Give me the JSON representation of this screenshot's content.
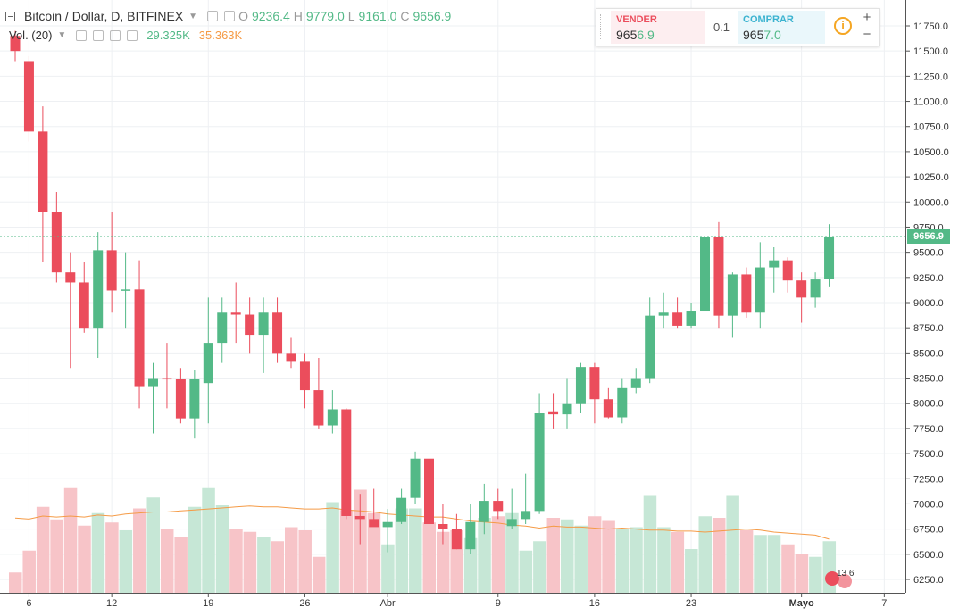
{
  "legend": {
    "symbol": "Bitcoin / Dollar, D, BITFINEX",
    "open_label": "O",
    "open": "9236.4",
    "high_label": "H",
    "high": "9779.0",
    "low_label": "L",
    "low": "9161.0",
    "close_label": "C",
    "close": "9656.9",
    "volume_label": "Vol. (20)",
    "volume_value": "29.325K",
    "volume_ma": "35.363K"
  },
  "trade": {
    "sell_label": "VENDER",
    "sell_price_main": "965",
    "sell_price_frac": "6.9",
    "quantity": "0.1",
    "buy_label": "COMPRAR",
    "buy_price_main": "965",
    "buy_price_frac": "7.0",
    "info_icon": "i",
    "plus": "+",
    "minus": "−"
  },
  "current_price_label": "9656.9",
  "time_badge": "13 6",
  "colors": {
    "up": "#53b987",
    "down": "#eb4d5c",
    "vol_up": "#c6e7d6",
    "vol_down": "#f7c4c8",
    "ma": "#f59b46"
  },
  "chart_data": {
    "type": "candlestick",
    "y_axis_labels": [
      "11750.0",
      "11500.0",
      "11250.0",
      "11000.0",
      "10750.0",
      "10500.0",
      "10250.0",
      "10000.0",
      "9750.0",
      "9500.0",
      "9250.0",
      "9000.0",
      "8750.0",
      "8500.0",
      "8250.0",
      "8000.0",
      "7750.0",
      "7500.0",
      "7250.0",
      "7000.0",
      "6750.0",
      "6500.0",
      "6250.0"
    ],
    "x_axis_labels": [
      "6",
      "12",
      "19",
      "26",
      "Abr",
      "9",
      "16",
      "23",
      "Mayo",
      "7"
    ],
    "ohlc": [
      [
        11650,
        11700,
        11400,
        11500
      ],
      [
        11400,
        11450,
        10600,
        10700
      ],
      [
        10700,
        10950,
        9400,
        9900
      ],
      [
        9900,
        10100,
        9200,
        9300
      ],
      [
        9300,
        9500,
        8350,
        9200
      ],
      [
        9200,
        9400,
        8700,
        8750
      ],
      [
        8750,
        9700,
        8450,
        9520
      ],
      [
        9520,
        9900,
        8900,
        9120
      ],
      [
        9120,
        9500,
        8750,
        9130
      ],
      [
        9130,
        9420,
        7950,
        8170
      ],
      [
        8170,
        8400,
        7700,
        8250
      ],
      [
        8250,
        8600,
        7950,
        8240
      ],
      [
        8240,
        8350,
        7800,
        7850
      ],
      [
        7850,
        8330,
        7650,
        8240
      ],
      [
        8200,
        9050,
        7800,
        8600
      ],
      [
        8600,
        9050,
        8400,
        8900
      ],
      [
        8900,
        9200,
        8600,
        8880
      ],
      [
        8880,
        9050,
        8500,
        8680
      ],
      [
        8680,
        9050,
        8300,
        8900
      ],
      [
        8900,
        9050,
        8400,
        8500
      ],
      [
        8500,
        8650,
        8350,
        8420
      ],
      [
        8420,
        8500,
        7950,
        8130
      ],
      [
        8130,
        8450,
        7750,
        7780
      ],
      [
        7780,
        8130,
        7700,
        7940
      ],
      [
        7940,
        7950,
        6850,
        6880
      ],
      [
        6880,
        7100,
        6600,
        6850
      ],
      [
        6850,
        7150,
        6800,
        6770
      ],
      [
        6770,
        6950,
        6520,
        6820
      ],
      [
        6820,
        7150,
        6800,
        7060
      ],
      [
        7060,
        7520,
        7000,
        7450
      ],
      [
        7450,
        7450,
        6750,
        6800
      ],
      [
        6800,
        7000,
        6600,
        6750
      ],
      [
        6750,
        6900,
        6550,
        6550
      ],
      [
        6550,
        7000,
        6500,
        6820
      ],
      [
        6820,
        7200,
        6700,
        7030
      ],
      [
        7030,
        7150,
        6850,
        6930
      ],
      [
        6780,
        7150,
        6750,
        6850
      ],
      [
        6850,
        7300,
        6800,
        6930
      ],
      [
        6930,
        8100,
        6900,
        7900
      ],
      [
        7920,
        8100,
        7750,
        7890
      ],
      [
        7890,
        8250,
        7750,
        8000
      ],
      [
        8000,
        8400,
        7900,
        8360
      ],
      [
        8360,
        8400,
        7800,
        8040
      ],
      [
        8040,
        8150,
        7850,
        7860
      ],
      [
        7860,
        8250,
        7800,
        8150
      ],
      [
        8150,
        8350,
        8100,
        8250
      ],
      [
        8250,
        9050,
        8200,
        8870
      ],
      [
        8870,
        9100,
        8750,
        8900
      ],
      [
        8900,
        9050,
        8750,
        8770
      ],
      [
        8770,
        9000,
        8750,
        8920
      ],
      [
        8920,
        9750,
        8900,
        9650
      ],
      [
        9650,
        9800,
        8750,
        8870
      ],
      [
        8870,
        9300,
        8650,
        9280
      ],
      [
        9280,
        9350,
        8850,
        8900
      ],
      [
        8900,
        9600,
        8750,
        9350
      ],
      [
        9350,
        9550,
        9100,
        9420
      ],
      [
        9420,
        9450,
        9100,
        9220
      ],
      [
        9220,
        9300,
        8800,
        9050
      ],
      [
        9050,
        9300,
        8950,
        9230
      ],
      [
        9236.4,
        9779,
        9161,
        9656.9
      ]
    ],
    "volume_ma": [
      6860,
      6850,
      6880,
      6870,
      6880,
      6870,
      6890,
      6880,
      6900,
      6910,
      6920,
      6920,
      6930,
      6940,
      6950,
      6960,
      6970,
      6980,
      6970,
      6970,
      6960,
      6950,
      6950,
      6960,
      6940,
      6930,
      6920,
      6900,
      6890,
      6880,
      6870,
      6870,
      6850,
      6830,
      6820,
      6810,
      6790,
      6780,
      6760,
      6780,
      6770,
      6770,
      6760,
      6750,
      6760,
      6750,
      6740,
      6740,
      6730,
      6730,
      6720,
      6730,
      6740,
      6750,
      6740,
      6720,
      6710,
      6700,
      6690,
      6650
    ]
  }
}
